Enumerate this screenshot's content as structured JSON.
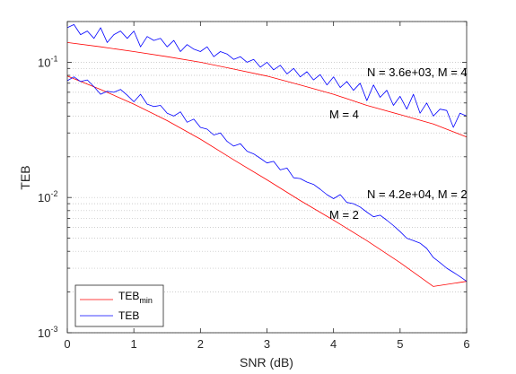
{
  "chart_data": {
    "type": "line",
    "xlabel": "SNR (dB)",
    "ylabel": "TEB",
    "xlim": [
      0,
      6
    ],
    "ylim": [
      0.001,
      0.2
    ],
    "yscale": "log",
    "xticks": [
      "0",
      "1",
      "2",
      "3",
      "4",
      "5",
      "6"
    ],
    "yticks": [
      {
        "value": 0.001,
        "base": "10",
        "exp": "-3"
      },
      {
        "value": 0.01,
        "base": "10",
        "exp": "-2"
      },
      {
        "value": 0.1,
        "base": "10",
        "exp": "-1"
      }
    ],
    "grid": "y-minor-dotted",
    "legend": {
      "position": "bottom-left",
      "entries": [
        {
          "label": "TEB",
          "sub": "min",
          "color": "#ff0000"
        },
        {
          "label": "TEB",
          "sub": "",
          "color": "#0000ff"
        }
      ]
    },
    "annotations": {
      "n4": "N = 3.6e+03, M = 4",
      "m4": "M = 4",
      "n2": "N = 4.2e+04, M = 2",
      "m2": "M = 2"
    },
    "series": [
      {
        "name": "TEB_min M=4",
        "color": "#ff0000",
        "x": [
          0,
          0.5,
          1,
          1.5,
          2,
          2.5,
          3,
          3.5,
          4,
          4.5,
          5,
          5.5,
          6
        ],
        "y": [
          0.14,
          0.13,
          0.12,
          0.11,
          0.1,
          0.089,
          0.079,
          0.068,
          0.058,
          0.048,
          0.041,
          0.035,
          0.028
        ]
      },
      {
        "name": "TEB M=4",
        "color": "#0000ff",
        "x": [
          0,
          0.1,
          0.2,
          0.3,
          0.4,
          0.5,
          0.6,
          0.7,
          0.8,
          0.9,
          1,
          1.1,
          1.2,
          1.3,
          1.4,
          1.5,
          1.6,
          1.7,
          1.8,
          1.9,
          2,
          2.1,
          2.2,
          2.3,
          2.4,
          2.5,
          2.6,
          2.7,
          2.8,
          2.9,
          3,
          3.1,
          3.2,
          3.3,
          3.4,
          3.5,
          3.6,
          3.7,
          3.8,
          3.9,
          4,
          4.1,
          4.2,
          4.3,
          4.4,
          4.5,
          4.6,
          4.7,
          4.8,
          4.9,
          5,
          5.1,
          5.2,
          5.3,
          5.4,
          5.5,
          5.6,
          5.7,
          5.8,
          5.9,
          6
        ],
        "y": [
          0.18,
          0.19,
          0.16,
          0.17,
          0.15,
          0.18,
          0.14,
          0.16,
          0.17,
          0.15,
          0.17,
          0.13,
          0.155,
          0.145,
          0.15,
          0.13,
          0.145,
          0.12,
          0.135,
          0.125,
          0.12,
          0.13,
          0.11,
          0.12,
          0.115,
          0.105,
          0.11,
          0.1,
          0.105,
          0.092,
          0.1,
          0.088,
          0.095,
          0.082,
          0.09,
          0.078,
          0.085,
          0.074,
          0.081,
          0.068,
          0.078,
          0.065,
          0.072,
          0.062,
          0.07,
          0.052,
          0.068,
          0.055,
          0.062,
          0.048,
          0.056,
          0.045,
          0.058,
          0.042,
          0.05,
          0.04,
          0.045,
          0.044,
          0.033,
          0.042,
          0.04
        ]
      },
      {
        "name": "TEB_min M=2",
        "color": "#ff0000",
        "x": [
          0,
          0.5,
          1,
          1.5,
          2,
          2.5,
          3,
          3.5,
          4,
          4.5,
          5,
          5.5,
          6
        ],
        "y": [
          0.079,
          0.063,
          0.049,
          0.037,
          0.027,
          0.019,
          0.0135,
          0.0095,
          0.0068,
          0.0048,
          0.0033,
          0.0022,
          0.0024
        ]
      },
      {
        "name": "TEB M=2",
        "color": "#0000ff",
        "x": [
          0,
          0.1,
          0.2,
          0.3,
          0.4,
          0.5,
          0.6,
          0.7,
          0.8,
          0.9,
          1,
          1.1,
          1.2,
          1.3,
          1.4,
          1.5,
          1.6,
          1.7,
          1.8,
          1.9,
          2,
          2.1,
          2.2,
          2.3,
          2.4,
          2.5,
          2.6,
          2.7,
          2.8,
          2.9,
          3,
          3.1,
          3.2,
          3.3,
          3.4,
          3.5,
          3.6,
          3.7,
          3.8,
          3.9,
          4,
          4.1,
          4.2,
          4.3,
          4.4,
          4.5,
          4.6,
          4.7,
          4.8,
          4.9,
          5,
          5.1,
          5.2,
          5.3,
          5.4,
          5.5,
          5.6,
          5.7,
          5.8,
          5.9,
          6
        ],
        "y": [
          0.073,
          0.078,
          0.072,
          0.074,
          0.066,
          0.058,
          0.061,
          0.06,
          0.063,
          0.057,
          0.051,
          0.058,
          0.049,
          0.047,
          0.048,
          0.042,
          0.04,
          0.043,
          0.036,
          0.038,
          0.033,
          0.032,
          0.029,
          0.03,
          0.026,
          0.024,
          0.025,
          0.022,
          0.021,
          0.0195,
          0.018,
          0.0185,
          0.016,
          0.0165,
          0.014,
          0.0138,
          0.013,
          0.0125,
          0.0115,
          0.0105,
          0.0098,
          0.0105,
          0.0092,
          0.009,
          0.0085,
          0.0078,
          0.0072,
          0.0074,
          0.0068,
          0.0062,
          0.0056,
          0.005,
          0.0048,
          0.0046,
          0.0042,
          0.0036,
          0.0033,
          0.003,
          0.0028,
          0.0026,
          0.0024
        ]
      }
    ]
  }
}
